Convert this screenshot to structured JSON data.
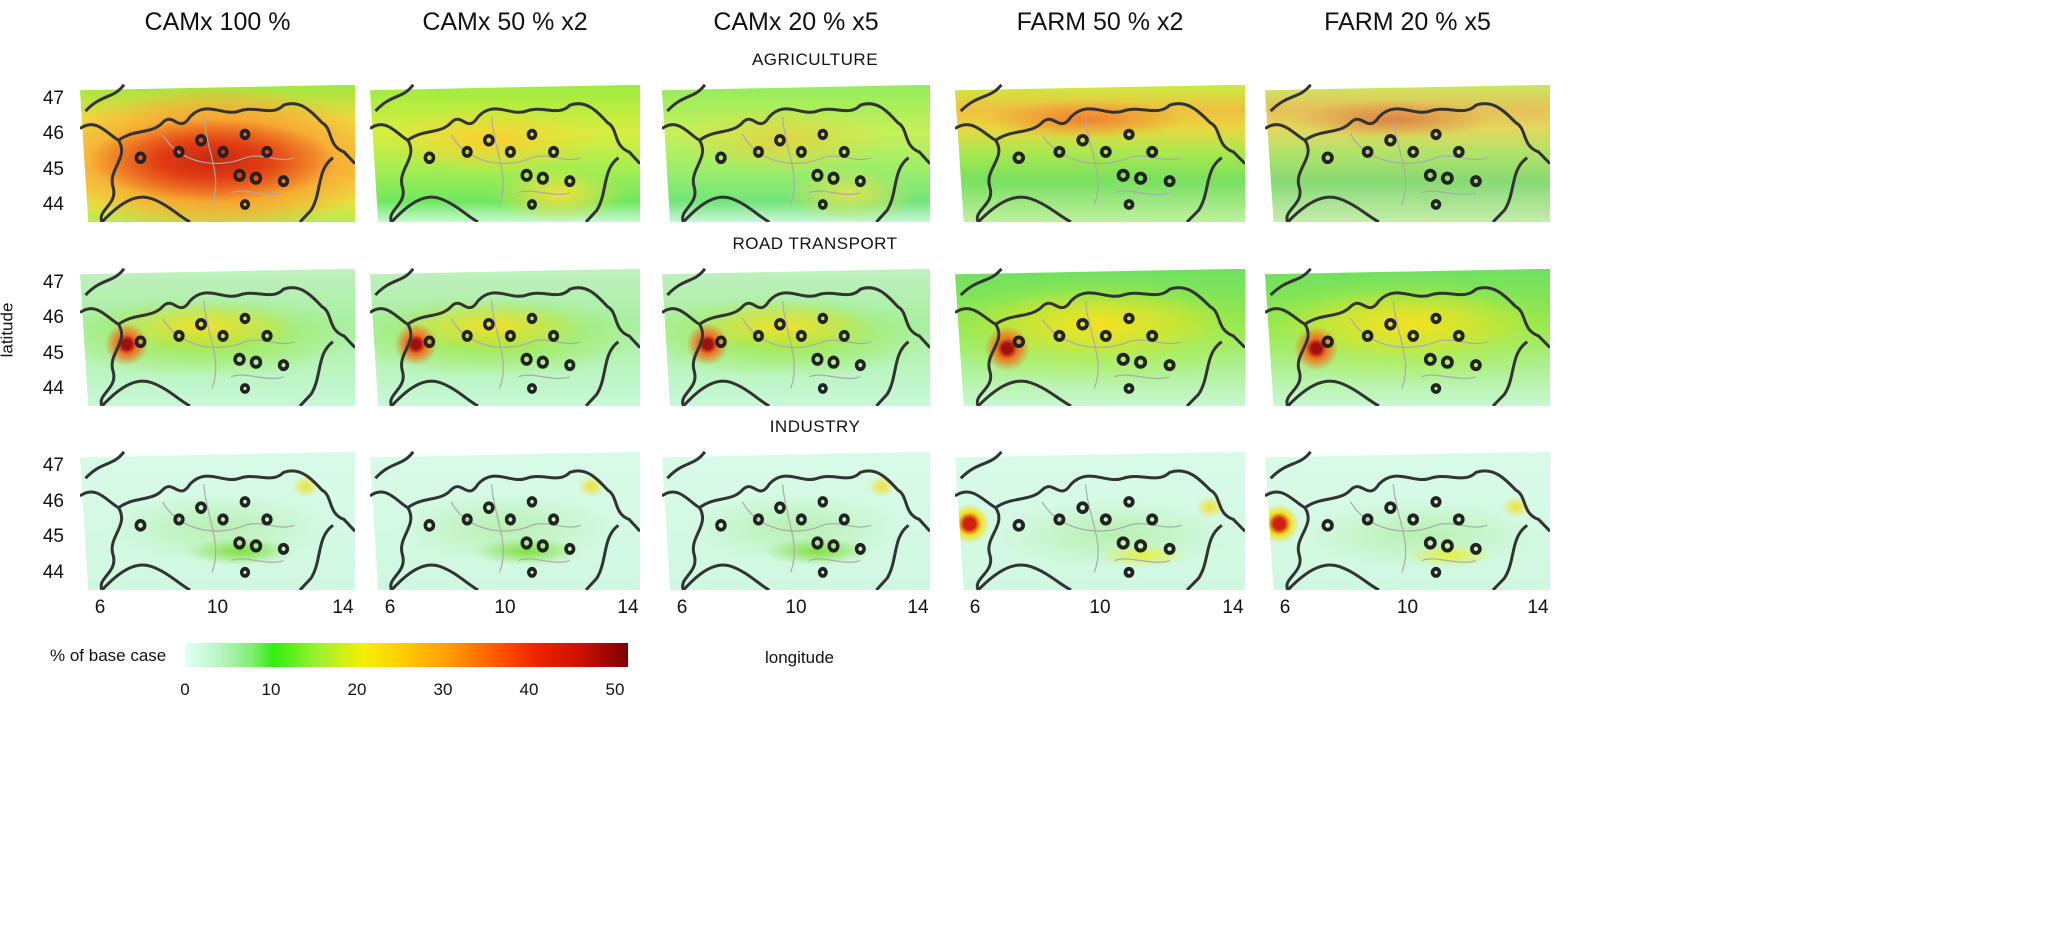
{
  "columns": [
    "CAMx 100 %",
    "CAMx 50 % x2",
    "CAMx 20 % x5",
    "FARM 50 % x2",
    "FARM 20 % x5"
  ],
  "rows": [
    {
      "key": "agri",
      "label": "AGRICULTURE"
    },
    {
      "key": "road",
      "label": "ROAD TRANSPORT"
    },
    {
      "key": "ind",
      "label": "INDUSTRY"
    }
  ],
  "y_axis": {
    "label": "latitude",
    "ticks": [
      "47",
      "46",
      "45",
      "44"
    ]
  },
  "x_axis": {
    "label": "longitude",
    "ticks": [
      "6",
      "10",
      "14"
    ]
  },
  "colorbar": {
    "label": "% of base case",
    "ticks": [
      "0",
      "10",
      "20",
      "30",
      "40",
      "50"
    ],
    "range": [
      0,
      50
    ],
    "colors": [
      "#e2fff9",
      "#33ee10",
      "#f4f000",
      "#ff9a00",
      "#ee2000",
      "#7a0000"
    ]
  }
}
